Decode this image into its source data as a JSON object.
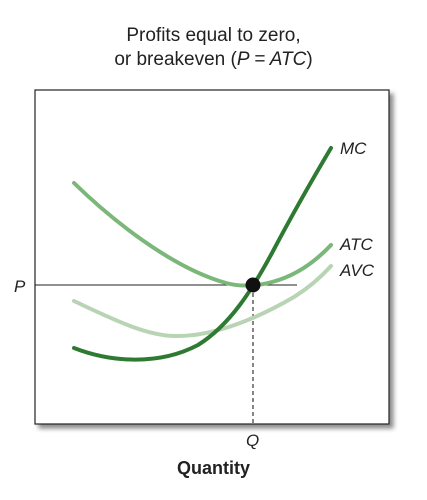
{
  "title": {
    "line1": "Profits equal to zero,",
    "line2_prefix": "or breakeven (",
    "line2_math": "P = ATC",
    "line2_suffix": ")"
  },
  "chart_data": {
    "type": "line",
    "xlabel": "Quantity",
    "ylabel": "",
    "price_label": "P",
    "quantity_label": "Q",
    "curves": [
      {
        "name": "MC",
        "color": "#2f7a33"
      },
      {
        "name": "ATC",
        "color": "#7cb77a"
      },
      {
        "name": "AVC",
        "color": "#b8d4b5"
      }
    ],
    "breakeven_point": "P = ATC",
    "grid": false
  }
}
